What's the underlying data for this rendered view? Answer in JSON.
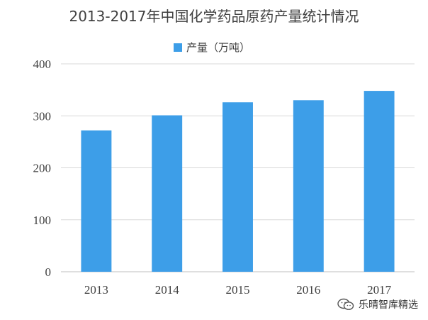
{
  "chart_data": {
    "type": "bar",
    "title": "2013-2017年中国化学药品原药产量统计情况",
    "categories": [
      "2013",
      "2014",
      "2015",
      "2016",
      "2017"
    ],
    "series": [
      {
        "name": "产量（万吨）",
        "values": [
          272,
          301,
          326,
          330,
          348
        ]
      }
    ],
    "ylim": [
      0,
      400
    ],
    "yticks": [
      "0",
      "100",
      "200",
      "300",
      "400"
    ],
    "xlabel": "",
    "ylabel": "",
    "grid": true,
    "legend_position": "top",
    "bar_color": "#3d9ee8"
  },
  "watermark": {
    "icon": "wechat-icon",
    "text": "乐晴智库精选"
  }
}
